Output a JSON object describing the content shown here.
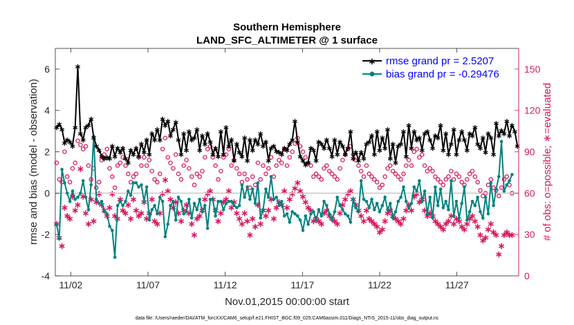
{
  "chart_data": {
    "type": "line",
    "title": "Southern Hemisphere",
    "subtitle": "LAND_SFC_ALTIMETER @ 1 surface",
    "xlabel": "Nov.01,2015 00:00:00 start",
    "ylabel": "rmse and bias (model - observation)",
    "ylabel_right": "# of obs: o=possible; ∗=evaluated",
    "footnote": "data file: /Users/raeder/DAI/ATM_forcXX/CAM6_setup/f.e21.FHIST_BGC.f09_025.CAM6assim.011/Diags_NTrS_2015-11/obs_diag_output.nc",
    "x_range_days": [
      0.5,
      30.5
    ],
    "x_ticks": [
      {
        "day": 1.5,
        "label": "11/02"
      },
      {
        "day": 6.5,
        "label": "11/07"
      },
      {
        "day": 11.5,
        "label": "11/12"
      },
      {
        "day": 16.5,
        "label": "11/17"
      },
      {
        "day": 21.5,
        "label": "11/22"
      },
      {
        "day": 26.5,
        "label": "11/27"
      }
    ],
    "ylim": [
      -4,
      7
    ],
    "y_ticks": [
      -4,
      -2,
      0,
      2,
      4,
      6
    ],
    "y2lim": [
      0,
      165
    ],
    "y2_ticks": [
      0,
      30,
      60,
      90,
      120,
      150
    ],
    "legend_position": "top-right",
    "grid": false,
    "colors": {
      "rmse": "#000000",
      "bias": "#00827f",
      "obs": "#d7185f",
      "zero": "#c8c8c8",
      "legend_text": "#0000ff"
    },
    "series": [
      {
        "name": "rmse grand pr = 2.5207",
        "key": "rmse",
        "values": [
          3.2,
          3.35,
          3.1,
          2.45,
          2.6,
          2.5,
          2.3,
          3.2,
          6.15,
          2.9,
          2.6,
          3.2,
          3.3,
          3.6,
          2.7,
          2.3,
          2.1,
          1.8,
          1.7,
          1.75,
          1.7,
          2.3,
          1.8,
          2.2,
          2.0,
          2.2,
          1.7,
          1.5,
          2.1,
          1.9,
          2.2,
          1.8,
          2.4,
          2.0,
          2.6,
          1.9,
          2.9,
          2.6,
          3.1,
          2.6,
          3.6,
          3.3,
          3.5,
          2.8,
          3.1,
          3.45,
          2.6,
          1.9,
          2.9,
          2.1,
          3.0,
          2.6,
          2.7,
          3.1,
          2.1,
          2.8,
          2.4,
          2.9,
          2.5,
          1.9,
          2.2,
          1.8,
          3.0,
          1.9,
          3.2,
          2.3,
          2.6,
          1.6,
          2.4,
          2.0,
          1.8,
          2.7,
          1.6,
          2.6,
          2.1,
          2.6,
          2.4,
          2.9,
          2.3,
          2.5,
          1.6,
          2.2,
          2.3,
          2.05,
          2.0,
          1.9,
          2.2,
          2.1,
          2.4,
          2.6,
          3.5,
          2.5,
          1.8,
          1.6,
          1.4,
          1.5,
          2.2,
          2.1,
          1.6,
          2.5,
          2.4,
          2.2,
          2.6,
          2.2,
          1.8,
          2.6,
          1.9,
          2.5,
          2.3,
          1.9,
          2.2,
          3.0,
          1.7,
          2.0,
          1.6,
          2.0,
          1.7,
          2.4,
          2.5,
          2.8,
          1.9,
          3.0,
          2.1,
          2.7,
          2.2,
          3.1,
          1.7,
          2.4,
          1.5,
          2.3,
          2.4,
          3.0,
          1.8,
          3.3,
          2.2,
          3.0,
          2.6,
          2.7,
          2.1,
          2.9,
          3.0,
          2.6,
          2.2,
          2.8,
          2.7,
          3.3,
          2.1,
          2.9,
          1.9,
          2.4,
          3.1,
          1.9,
          2.6,
          3.0,
          2.6,
          2.1,
          2.9,
          2.8,
          3.2,
          2.4,
          2.2,
          2.7,
          2.0,
          2.9,
          2.7,
          1.9,
          3.4,
          2.8,
          3.05,
          2.9,
          3.5,
          2.8,
          3.3,
          3.0,
          2.3
        ]
      },
      {
        "name": "bias grand pr = -0.29476",
        "key": "bias",
        "values": [
          -1.5,
          -2.2,
          1.15,
          0.5,
          0.0,
          -0.4,
          0.1,
          -0.3,
          -0.2,
          0.0,
          0.6,
          -0.2,
          -0.8,
          0.4,
          2.75,
          -0.3,
          -0.5,
          -0.4,
          -0.9,
          -1.0,
          -1.6,
          -1.8,
          -3.1,
          -0.6,
          -0.4,
          -0.6,
          -0.4,
          0.1,
          -0.1,
          0.5,
          0.5,
          0.3,
          0.4,
          -0.4,
          0.3,
          -1.3,
          -0.8,
          -0.6,
          -1.0,
          -0.2,
          -0.4,
          -2.1,
          -1.5,
          -0.6,
          -0.4,
          -1.3,
          -0.2,
          -0.4,
          -1.0,
          -0.9,
          -0.3,
          -1.2,
          -0.5,
          -0.8,
          -0.3,
          -0.9,
          -0.6,
          -1.7,
          -0.3,
          -0.3,
          -1.1,
          -0.4,
          -0.4,
          -0.8,
          -0.5,
          -0.4,
          -0.4,
          -0.6,
          -0.7,
          -0.6,
          0.4,
          -0.2,
          0.3,
          -0.3,
          0.2,
          -0.5,
          0.5,
          -1.2,
          -0.8,
          0.2,
          -0.2,
          0.8,
          -0.3,
          -0.2,
          -0.6,
          -0.4,
          -1.1,
          -1.0,
          -1.4,
          -0.9,
          -1.0,
          -1.1,
          -1.3,
          -1.8,
          -1.1,
          -1.5,
          -1.0,
          -0.9,
          -1.3,
          -0.8,
          -1.1,
          -0.4,
          -0.6,
          -1.0,
          -1.3,
          -0.9,
          -0.2,
          -0.6,
          -0.8,
          -1.0,
          -1.1,
          -1.4,
          -0.3,
          -0.7,
          -0.9,
          0.6,
          -0.3,
          -0.4,
          -0.7,
          -0.3,
          -0.8,
          -0.5,
          -0.9,
          -0.6,
          -0.2,
          -0.8,
          -0.5,
          -1.2,
          -0.9,
          -0.4,
          -0.2,
          0.3,
          -0.4,
          -0.7,
          -0.5,
          0.3,
          0.1,
          0.6,
          -0.4,
          0.1,
          -1.0,
          -0.2,
          -1.2,
          0.3,
          -0.6,
          0.2,
          -0.7,
          -0.4,
          -0.8,
          0.6,
          -1.1,
          -0.4,
          -1.2,
          -0.5,
          0.3,
          -1.3,
          -0.9,
          -0.4,
          -0.6,
          -0.2,
          -0.9,
          -1.2,
          -0.2,
          -1.0,
          0.5,
          -0.6,
          0.2,
          0.8,
          2.5,
          0.1,
          0.4,
          0.6,
          0.9
        ]
      },
      {
        "name": "possible",
        "key": "possible",
        "marker": "o",
        "values": [
          82,
          70,
          68,
          90,
          72,
          68,
          78,
          82,
          98,
          95,
          92,
          94,
          80,
          70,
          78,
          64,
          68,
          84,
          88,
          92,
          78,
          72,
          64,
          80,
          82,
          86,
          80,
          74,
          68,
          72,
          74,
          86,
          80,
          86,
          80,
          84,
          76,
          70,
          68,
          74,
          92,
          100,
          86,
          82,
          78,
          88,
          74,
          70,
          80,
          84,
          78,
          72,
          66,
          74,
          72,
          76,
          86,
          92,
          94,
          86,
          80,
          70,
          76,
          86,
          88,
          92,
          80,
          84,
          78,
          74,
          68,
          74,
          70,
          64,
          72,
          66,
          82,
          70,
          80,
          74,
          78,
          86,
          72,
          80,
          84,
          82,
          92,
          80,
          86,
          90,
          96,
          100,
          94,
          90,
          86,
          82,
          80,
          72,
          74,
          72,
          70,
          78,
          80,
          76,
          74,
          72,
          70,
          78,
          84,
          88,
          92,
          94,
          88,
          84,
          80,
          76,
          72,
          80,
          74,
          72,
          70,
          68,
          64,
          66,
          72,
          78,
          80,
          76,
          74,
          72,
          70,
          74,
          80,
          84,
          80,
          90,
          92,
          86,
          88,
          80,
          76,
          78,
          76,
          72,
          70,
          68,
          66,
          70,
          72,
          76,
          70,
          74,
          72,
          68,
          66,
          70,
          74,
          76,
          72,
          68,
          62,
          58,
          60,
          66,
          70,
          64,
          62,
          58,
          64,
          70,
          72,
          66,
          60
        ]
      },
      {
        "name": "evaluated",
        "key": "evaluated",
        "marker": "*",
        "values": [
          38,
          28,
          22,
          50,
          44,
          42,
          58,
          48,
          52,
          78,
          58,
          46,
          38,
          56,
          40,
          54,
          60,
          52,
          48,
          44,
          50,
          60,
          44,
          42,
          56,
          48,
          46,
          52,
          42,
          56,
          48,
          44,
          46,
          54,
          42,
          46,
          56,
          40,
          38,
          46,
          60,
          70,
          62,
          56,
          50,
          54,
          46,
          40,
          48,
          52,
          46,
          38,
          30,
          42,
          44,
          48,
          56,
          60,
          62,
          56,
          48,
          40,
          46,
          54,
          56,
          62,
          50,
          54,
          46,
          42,
          38,
          46,
          40,
          30,
          42,
          36,
          52,
          38,
          48,
          44,
          48,
          56,
          42,
          50,
          54,
          52,
          62,
          50,
          56,
          60,
          64,
          68,
          62,
          58,
          54,
          50,
          48,
          40,
          42,
          40,
          38,
          46,
          48,
          44,
          42,
          40,
          38,
          46,
          52,
          56,
          60,
          62,
          56,
          52,
          48,
          44,
          40,
          48,
          42,
          40,
          38,
          36,
          32,
          34,
          40,
          46,
          48,
          44,
          42,
          40,
          38,
          42,
          48,
          52,
          48,
          58,
          60,
          54,
          56,
          48,
          44,
          46,
          44,
          40,
          38,
          36,
          34,
          38,
          40,
          44,
          38,
          42,
          40,
          36,
          34,
          38,
          42,
          44,
          40,
          36,
          30,
          26,
          28,
          34,
          38,
          32,
          30,
          16,
          22,
          30,
          32,
          30,
          30
        ]
      }
    ]
  }
}
